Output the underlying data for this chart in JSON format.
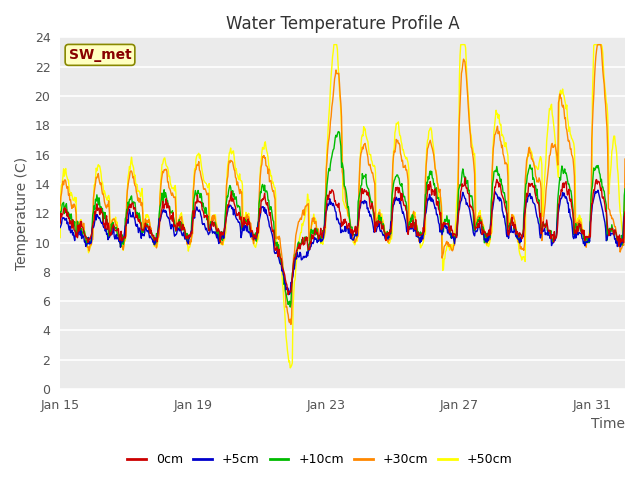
{
  "title": "Water Temperature Profile A",
  "xlabel": "Time",
  "ylabel": "Temperature (C)",
  "ylim": [
    0,
    24
  ],
  "yticks": [
    0,
    2,
    4,
    6,
    8,
    10,
    12,
    14,
    16,
    18,
    20,
    22,
    24
  ],
  "xtick_labels": [
    "Jan 15",
    "Jan 19",
    "Jan 23",
    "Jan 27",
    "Jan 31"
  ],
  "xtick_positions": [
    0,
    4,
    8,
    12,
    16
  ],
  "colors": {
    "0cm": "#cc0000",
    "+5cm": "#0000cc",
    "+10cm": "#00bb00",
    "+30cm": "#ff8800",
    "+50cm": "#ffff00"
  },
  "annotation_text": "SW_met",
  "annotation_color": "#880000",
  "annotation_bg": "#ffffc0",
  "plot_bg": "#ebebeb",
  "grid_color": "#ffffff",
  "linewidth": 1.0,
  "title_fontsize": 12,
  "tick_fontsize": 9,
  "label_fontsize": 10
}
